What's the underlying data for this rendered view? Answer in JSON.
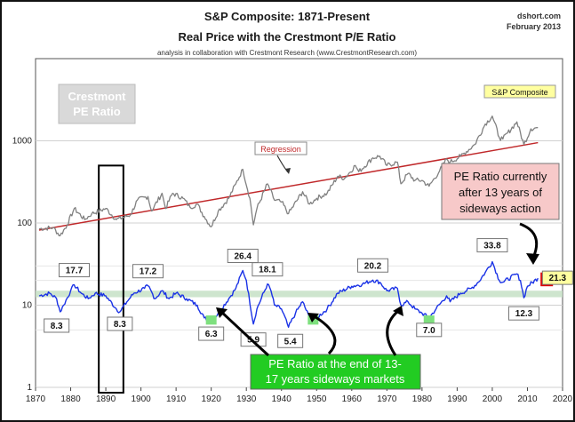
{
  "header": {
    "title": "S&P Composite: 1871-Present",
    "subtitle": "Real Price with the Crestmont P/E Ratio",
    "byline": "analysis in collaboration with Crestmont Research (www.CrestmontResearch.com)",
    "source": "dshort.com",
    "date": "February 2013"
  },
  "colors": {
    "price": "#808080",
    "regression": "#c0282a",
    "pe": "#1a32e6",
    "band": "#c6e0c6",
    "trough_marker": "#7ee07e",
    "current_marker": "#e00000",
    "callout_pink": "#f7c9c9",
    "callout_green": "#22cc22",
    "label_yellow": "#ffffa0"
  },
  "chart_data": {
    "type": "line",
    "title": "S&P Composite: 1871-Present",
    "subtitle": "Real Price with the Crestmont P/E Ratio",
    "y_scale": "log",
    "x_range": [
      1870,
      2020
    ],
    "y_range": [
      1,
      10000
    ],
    "x_ticks": [
      1870,
      1880,
      1890,
      1900,
      1910,
      1920,
      1930,
      1940,
      1950,
      1960,
      1970,
      1980,
      1990,
      2000,
      2010,
      2020
    ],
    "y_ticks": [
      {
        "v": 1,
        "label": "1"
      },
      {
        "v": 10,
        "label": "10"
      },
      {
        "v": 100,
        "label": "100"
      },
      {
        "v": 1000,
        "label": "1000"
      }
    ],
    "series": [
      {
        "name": "S&P Composite",
        "points": [
          [
            1871,
            85
          ],
          [
            1875,
            88
          ],
          [
            1877,
            70
          ],
          [
            1879,
            95
          ],
          [
            1881,
            150
          ],
          [
            1884,
            110
          ],
          [
            1886,
            130
          ],
          [
            1890,
            150
          ],
          [
            1893,
            110
          ],
          [
            1897,
            125
          ],
          [
            1899,
            190
          ],
          [
            1902,
            210
          ],
          [
            1903,
            140
          ],
          [
            1906,
            230
          ],
          [
            1907,
            150
          ],
          [
            1909,
            230
          ],
          [
            1912,
            200
          ],
          [
            1914,
            155
          ],
          [
            1916,
            170
          ],
          [
            1918,
            120
          ],
          [
            1920,
            90
          ],
          [
            1922,
            140
          ],
          [
            1925,
            200
          ],
          [
            1927,
            300
          ],
          [
            1929,
            450
          ],
          [
            1931,
            200
          ],
          [
            1932,
            95
          ],
          [
            1933,
            150
          ],
          [
            1936,
            300
          ],
          [
            1938,
            190
          ],
          [
            1940,
            180
          ],
          [
            1942,
            130
          ],
          [
            1946,
            240
          ],
          [
            1948,
            170
          ],
          [
            1950,
            200
          ],
          [
            1953,
            230
          ],
          [
            1956,
            370
          ],
          [
            1958,
            350
          ],
          [
            1961,
            500
          ],
          [
            1962,
            420
          ],
          [
            1966,
            620
          ],
          [
            1968,
            650
          ],
          [
            1970,
            500
          ],
          [
            1973,
            550
          ],
          [
            1974,
            300
          ],
          [
            1976,
            400
          ],
          [
            1978,
            330
          ],
          [
            1980,
            330
          ],
          [
            1982,
            280
          ],
          [
            1985,
            430
          ],
          [
            1987,
            600
          ],
          [
            1988,
            550
          ],
          [
            1991,
            650
          ],
          [
            1995,
            900
          ],
          [
            1998,
            1600
          ],
          [
            2000,
            2000
          ],
          [
            2002,
            1100
          ],
          [
            2003,
            1050
          ],
          [
            2007,
            1700
          ],
          [
            2009,
            900
          ],
          [
            2011,
            1400
          ],
          [
            2013,
            1450
          ]
        ]
      },
      {
        "name": "Regression",
        "points": [
          [
            1871,
            82
          ],
          [
            2013,
            950
          ]
        ]
      },
      {
        "name": "Crestmont PE Ratio",
        "points": [
          [
            1871,
            13
          ],
          [
            1874,
            14
          ],
          [
            1876,
            12
          ],
          [
            1877,
            8.3
          ],
          [
            1878,
            10
          ],
          [
            1880,
            15
          ],
          [
            1881,
            17.7
          ],
          [
            1883,
            14
          ],
          [
            1885,
            12
          ],
          [
            1887,
            14
          ],
          [
            1890,
            13
          ],
          [
            1893,
            9
          ],
          [
            1894,
            8.3
          ],
          [
            1896,
            11
          ],
          [
            1898,
            14
          ],
          [
            1901,
            16
          ],
          [
            1902,
            17.2
          ],
          [
            1904,
            12
          ],
          [
            1906,
            15
          ],
          [
            1908,
            12
          ],
          [
            1910,
            14
          ],
          [
            1913,
            12
          ],
          [
            1916,
            10
          ],
          [
            1918,
            7
          ],
          [
            1920,
            6.3
          ],
          [
            1922,
            8
          ],
          [
            1925,
            12
          ],
          [
            1927,
            16
          ],
          [
            1929,
            26.4
          ],
          [
            1930,
            20
          ],
          [
            1932,
            5.9
          ],
          [
            1933,
            9
          ],
          [
            1936,
            18.1
          ],
          [
            1937,
            15
          ],
          [
            1938,
            10
          ],
          [
            1940,
            9
          ],
          [
            1942,
            5.4
          ],
          [
            1944,
            8
          ],
          [
            1946,
            11
          ],
          [
            1948,
            7
          ],
          [
            1949,
            6.5
          ],
          [
            1950,
            7
          ],
          [
            1953,
            9
          ],
          [
            1956,
            14
          ],
          [
            1960,
            17
          ],
          [
            1963,
            18
          ],
          [
            1966,
            20.2
          ],
          [
            1968,
            19
          ],
          [
            1970,
            15
          ],
          [
            1973,
            16
          ],
          [
            1974,
            10
          ],
          [
            1976,
            11
          ],
          [
            1978,
            9
          ],
          [
            1980,
            8
          ],
          [
            1982,
            7.0
          ],
          [
            1984,
            9
          ],
          [
            1987,
            13
          ],
          [
            1988,
            11
          ],
          [
            1991,
            14
          ],
          [
            1994,
            16
          ],
          [
            1996,
            19
          ],
          [
            1998,
            25
          ],
          [
            2000,
            33.8
          ],
          [
            2002,
            20
          ],
          [
            2003,
            19
          ],
          [
            2007,
            24
          ],
          [
            2008,
            20
          ],
          [
            2009,
            12.3
          ],
          [
            2010,
            17
          ],
          [
            2013,
            21.3
          ]
        ]
      }
    ],
    "pe_band": [
      12.5,
      15
    ],
    "annotations": [
      {
        "x": 1881,
        "y": 17.7,
        "label": "17.7"
      },
      {
        "x": 1877,
        "y": 8.3,
        "label": "8.3"
      },
      {
        "x": 1894,
        "y": 8.3,
        "label": "8.3"
      },
      {
        "x": 1902,
        "y": 17.2,
        "label": "17.2"
      },
      {
        "x": 1920,
        "y": 6.3,
        "label": "6.3"
      },
      {
        "x": 1929,
        "y": 26.4,
        "label": "26.4"
      },
      {
        "x": 1932,
        "y": 5.9,
        "label": "5.9"
      },
      {
        "x": 1936,
        "y": 18.1,
        "label": "18.1"
      },
      {
        "x": 1942,
        "y": 5.4,
        "label": "5.4"
      },
      {
        "x": 1966,
        "y": 20.2,
        "label": "20.2"
      },
      {
        "x": 1982,
        "y": 7.0,
        "label": "7.0"
      },
      {
        "x": 2000,
        "y": 33.8,
        "label": "33.8"
      },
      {
        "x": 2009,
        "y": 12.3,
        "label": "12.3"
      },
      {
        "x": 2013,
        "y": 21.3,
        "label": "21.3"
      }
    ],
    "trough_markers": [
      1920,
      1949,
      1982
    ],
    "window_years": [
      1888,
      1895
    ],
    "regression_label": "Regression",
    "legend_label": "S&P Composite",
    "pe_legend": [
      "Crestmont",
      "PE Ratio"
    ],
    "callout_pink": [
      "PE Ratio currently",
      "after 13 years of",
      "sideways action"
    ],
    "callout_green": [
      "PE Ratio at the end of 13-",
      "17 years sideways markets"
    ]
  }
}
